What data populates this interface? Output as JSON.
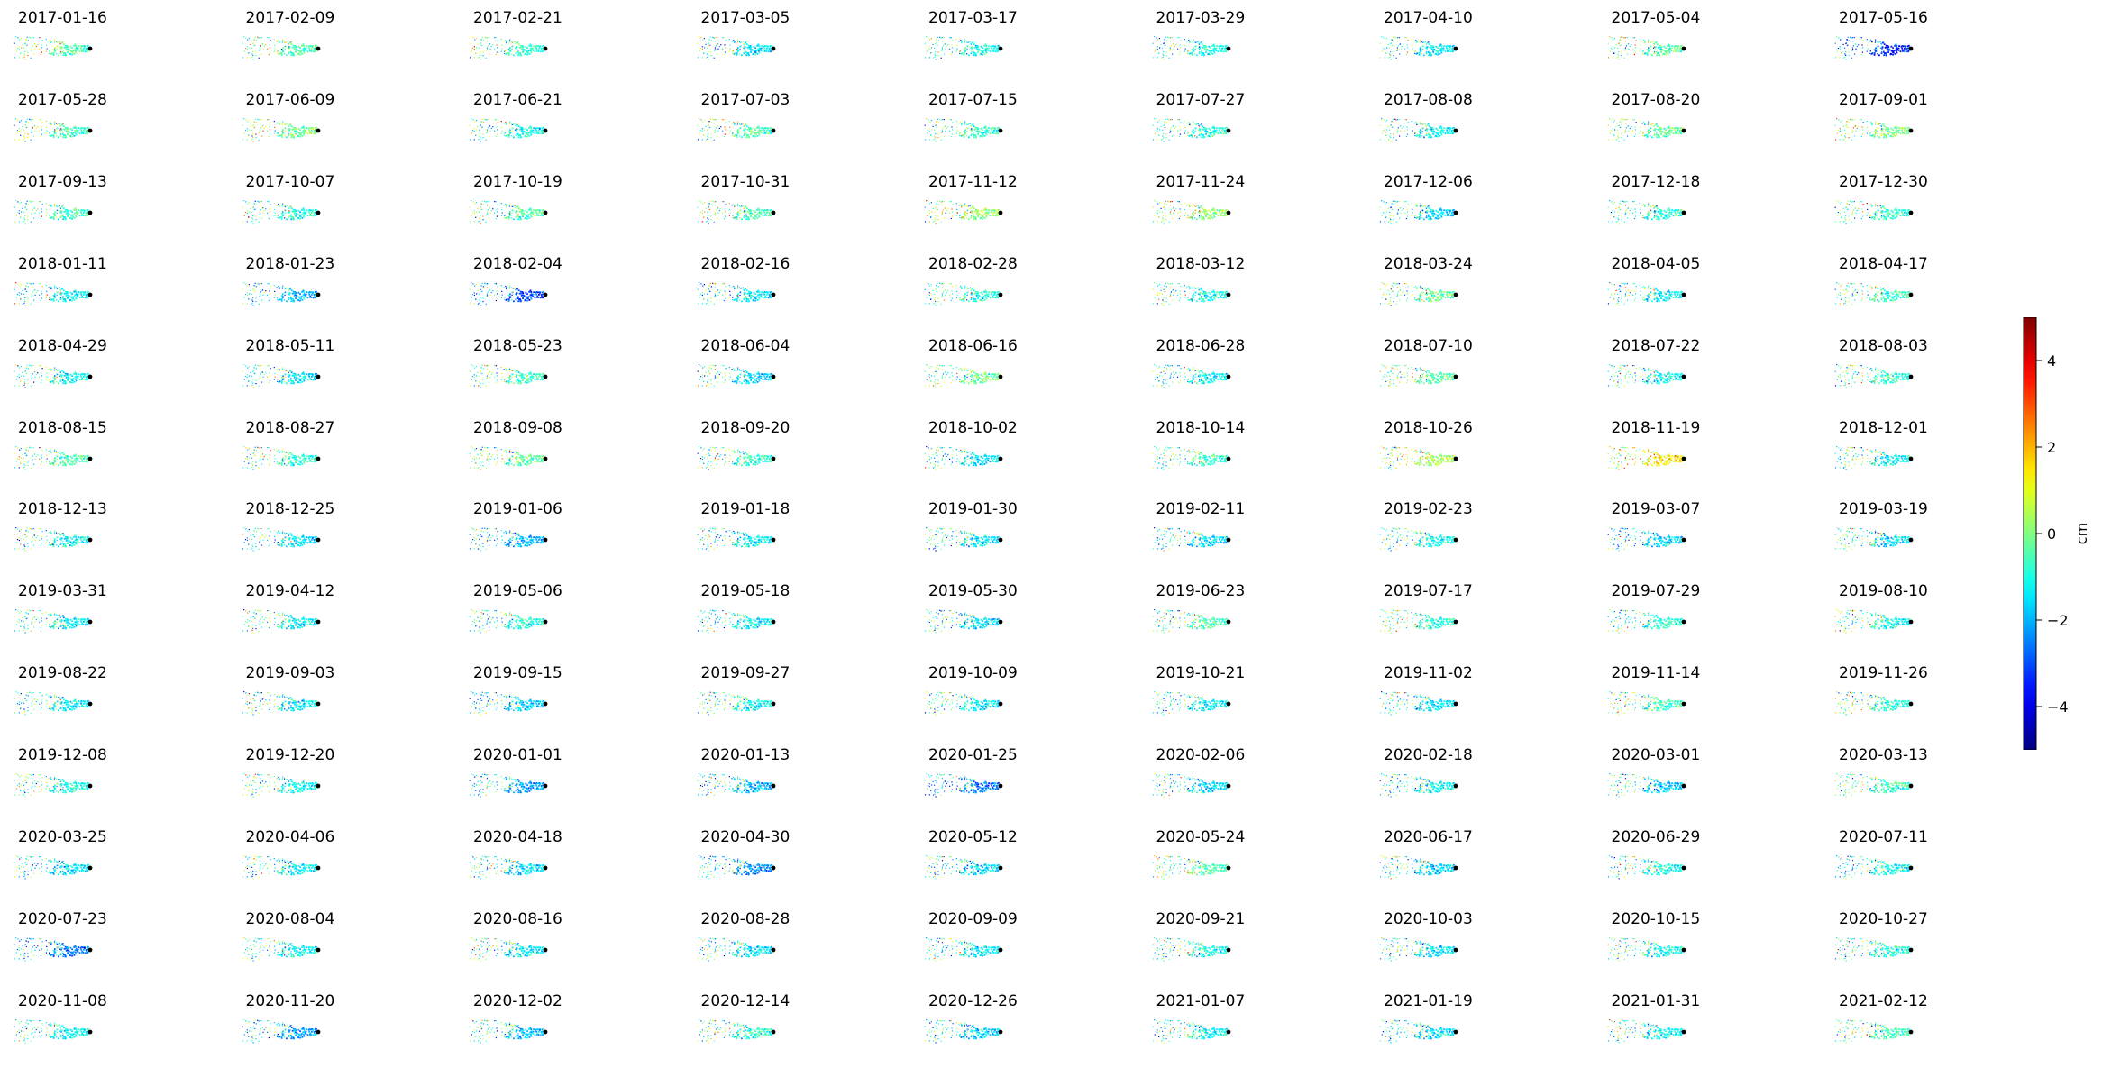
{
  "chart_data": {
    "type": "scatter",
    "layout": {
      "rows": 13,
      "cols": 9
    },
    "dates": [
      "2017-01-16",
      "2017-02-09",
      "2017-02-21",
      "2017-03-05",
      "2017-03-17",
      "2017-03-29",
      "2017-04-10",
      "2017-05-04",
      "2017-05-16",
      "2017-05-28",
      "2017-06-09",
      "2017-06-21",
      "2017-07-03",
      "2017-07-15",
      "2017-07-27",
      "2017-08-08",
      "2017-08-20",
      "2017-09-01",
      "2017-09-13",
      "2017-10-07",
      "2017-10-19",
      "2017-10-31",
      "2017-11-12",
      "2017-11-24",
      "2017-12-06",
      "2017-12-18",
      "2017-12-30",
      "2018-01-11",
      "2018-01-23",
      "2018-02-04",
      "2018-02-16",
      "2018-02-28",
      "2018-03-12",
      "2018-03-24",
      "2018-04-05",
      "2018-04-17",
      "2018-04-29",
      "2018-05-11",
      "2018-05-23",
      "2018-06-04",
      "2018-06-16",
      "2018-06-28",
      "2018-07-10",
      "2018-07-22",
      "2018-08-03",
      "2018-08-15",
      "2018-08-27",
      "2018-09-08",
      "2018-09-20",
      "2018-10-02",
      "2018-10-14",
      "2018-10-26",
      "2018-11-19",
      "2018-12-01",
      "2018-12-13",
      "2018-12-25",
      "2019-01-06",
      "2019-01-18",
      "2019-01-30",
      "2019-02-11",
      "2019-02-23",
      "2019-03-07",
      "2019-03-19",
      "2019-03-31",
      "2019-04-12",
      "2019-05-06",
      "2019-05-18",
      "2019-05-30",
      "2019-06-23",
      "2019-07-17",
      "2019-07-29",
      "2019-08-10",
      "2019-08-22",
      "2019-09-03",
      "2019-09-15",
      "2019-09-27",
      "2019-10-09",
      "2019-10-21",
      "2019-11-02",
      "2019-11-14",
      "2019-11-26",
      "2019-12-08",
      "2019-12-20",
      "2020-01-01",
      "2020-01-13",
      "2020-01-25",
      "2020-02-06",
      "2020-02-18",
      "2020-03-01",
      "2020-03-13",
      "2020-03-25",
      "2020-04-06",
      "2020-04-18",
      "2020-04-30",
      "2020-05-12",
      "2020-05-24",
      "2020-06-17",
      "2020-06-29",
      "2020-07-11",
      "2020-07-23",
      "2020-08-04",
      "2020-08-16",
      "2020-08-28",
      "2020-09-09",
      "2020-09-21",
      "2020-10-03",
      "2020-10-15",
      "2020-10-27",
      "2020-11-08",
      "2020-11-20",
      "2020-12-02",
      "2020-12-14",
      "2020-12-26",
      "2021-01-07",
      "2021-01-19",
      "2021-01-31",
      "2021-02-12"
    ],
    "mean_displacement_cm": [
      -0.5,
      -0.6,
      -0.7,
      -1.5,
      -1.2,
      -1.0,
      -1.4,
      -0.4,
      -3.5,
      -0.6,
      -0.2,
      -1.0,
      -0.5,
      -0.8,
      -1.0,
      -1.2,
      -0.4,
      -0.1,
      -0.7,
      -0.9,
      -0.4,
      -0.6,
      0.2,
      0.1,
      -1.5,
      -0.9,
      -0.8,
      -1.3,
      -2.0,
      -3.2,
      -1.5,
      -1.0,
      -1.1,
      -0.3,
      -1.4,
      -0.6,
      -1.2,
      -1.5,
      -0.8,
      -1.6,
      -0.2,
      -1.3,
      -0.3,
      -1.2,
      -0.9,
      -0.6,
      -0.8,
      -0.4,
      -0.9,
      -1.6,
      -0.8,
      0.5,
      1.5,
      -1.2,
      -1.2,
      -1.5,
      -2.0,
      -1.2,
      -1.6,
      -1.6,
      -1.2,
      -1.6,
      -1.5,
      -1.3,
      -1.3,
      -1.0,
      -1.2,
      -1.5,
      -0.5,
      -0.8,
      -0.9,
      -1.2,
      -1.4,
      -1.3,
      -1.7,
      -1.3,
      -1.4,
      -1.4,
      -1.5,
      -0.6,
      -1.0,
      -1.0,
      -1.2,
      -2.2,
      -2.0,
      -2.5,
      -1.6,
      -1.4,
      -1.8,
      -0.7,
      -1.6,
      -1.3,
      -1.5,
      -2.3,
      -1.6,
      -0.4,
      -1.7,
      -1.1,
      -1.2,
      -2.6,
      -1.3,
      -1.3,
      -1.6,
      -1.4,
      -1.2,
      -1.6,
      -1.1,
      -1.0,
      -1.2,
      -2.2,
      -1.8,
      -0.9,
      -1.7,
      -1.2,
      -1.6,
      -1.2,
      -0.5
    ],
    "colorbar": {
      "label": "cm",
      "min": -5,
      "max": 5,
      "ticks": [
        -4,
        -2,
        0,
        2,
        4
      ],
      "tick_labels": [
        "−4",
        "−2",
        "0",
        "2",
        "4"
      ],
      "colormap": "jet"
    },
    "axes_visible": false,
    "grid": false
  }
}
